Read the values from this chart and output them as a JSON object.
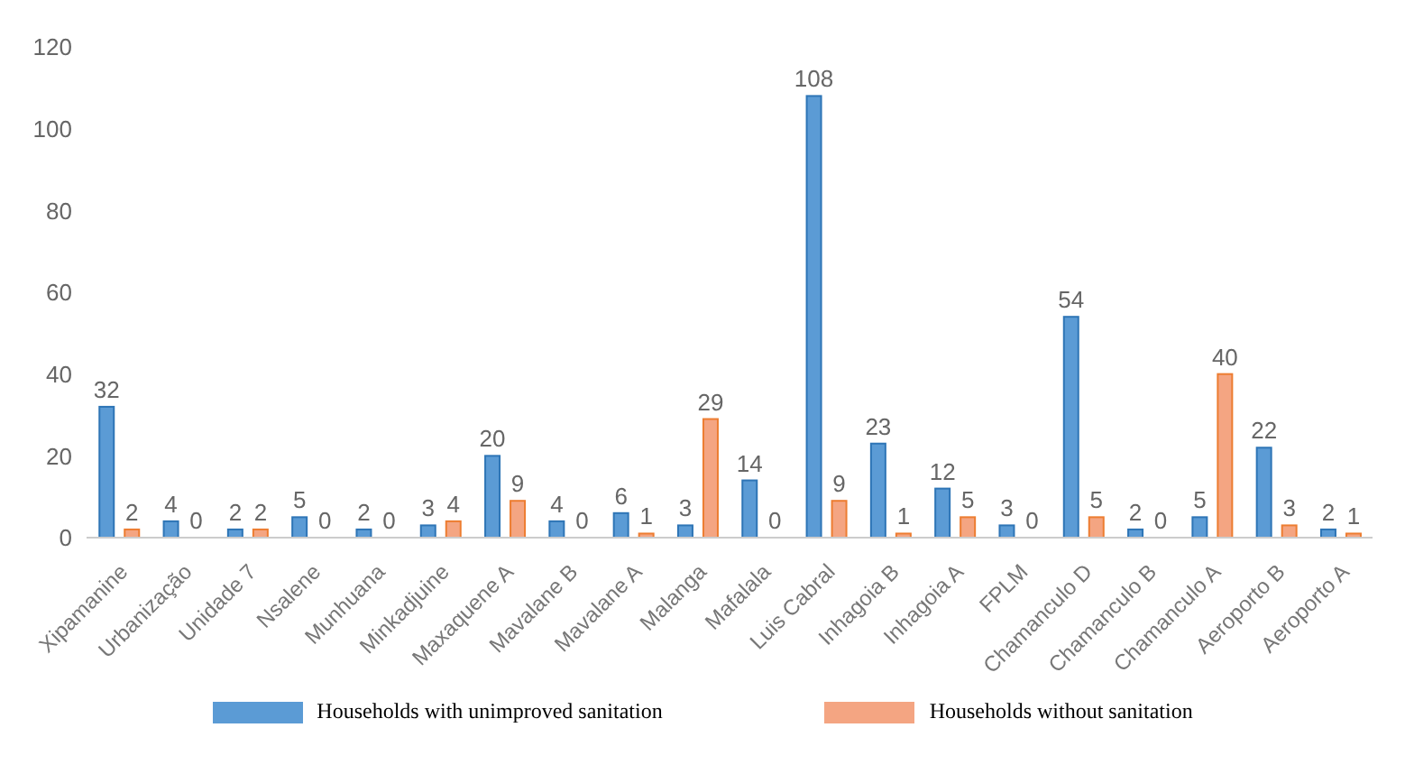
{
  "chart_data": {
    "type": "bar",
    "categories": [
      "Xipamanine",
      "Urbanização",
      "Unidade 7",
      "Nsalene",
      "Munhuana",
      "Minkadjuine",
      "Maxaquene A",
      "Mavalane B",
      "Mavalane A",
      "Malanga",
      "Mafalala",
      "Luis Cabral",
      "Inhagoia B",
      "Inhagoia A",
      "FPLM",
      "Chamanculo D",
      "Chamanculo B",
      "Chamanculo A",
      "Aeroporto B",
      "Aeroporto A"
    ],
    "series": [
      {
        "name": "Households with unimproved sanitation",
        "color": "#5b9bd5",
        "values": [
          32,
          4,
          2,
          5,
          2,
          3,
          20,
          4,
          6,
          3,
          14,
          108,
          23,
          12,
          3,
          54,
          2,
          5,
          22,
          2
        ]
      },
      {
        "name": "Households without sanitation",
        "color": "#f4a582",
        "values": [
          2,
          0,
          2,
          0,
          0,
          4,
          9,
          0,
          1,
          29,
          0,
          9,
          1,
          5,
          0,
          5,
          0,
          40,
          3,
          1
        ]
      }
    ],
    "ylim": [
      0,
      120
    ],
    "yticks": [
      0,
      20,
      40,
      60,
      80,
      100,
      120
    ],
    "grid": false,
    "legend": "bottom",
    "data_labels": true
  }
}
